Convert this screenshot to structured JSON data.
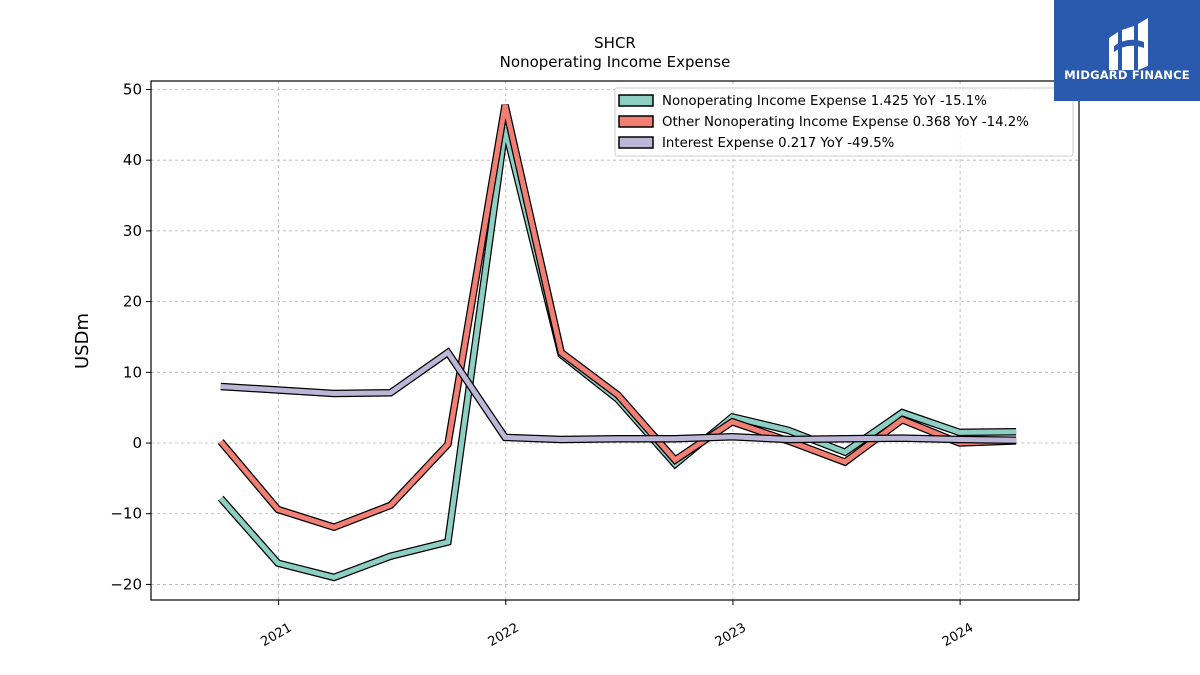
{
  "chart_data": {
    "type": "line",
    "title": "SHCR",
    "subtitle": "Nonoperating Income Expense",
    "ylabel": "USDm",
    "xlabel": "",
    "ylim": [
      -22.2,
      51.2
    ],
    "xlim": [
      "2020-06-10",
      "2024-07-10"
    ],
    "yticks": [
      -20,
      -10,
      0,
      10,
      20,
      30,
      40,
      50
    ],
    "xticks": [
      {
        "date": "2021-01-01",
        "label": "2021"
      },
      {
        "date": "2022-01-01",
        "label": "2022"
      },
      {
        "date": "2023-01-01",
        "label": "2023"
      },
      {
        "date": "2024-01-01",
        "label": "2024"
      }
    ],
    "grid": true,
    "legend_position": "top-right",
    "x": [
      "2020-09-30",
      "2020-12-31",
      "2021-03-31",
      "2021-06-30",
      "2021-09-30",
      "2021-12-31",
      "2022-03-31",
      "2022-06-30",
      "2022-09-30",
      "2022-12-31",
      "2023-03-31",
      "2023-06-30",
      "2023-09-30",
      "2023-12-31",
      "2024-03-31"
    ],
    "series": [
      {
        "name": "Nonoperating Income Expense",
        "legend": "Nonoperating Income Expense  1.425 YoY -15.1%",
        "color": "#8ecfc3",
        "values": [
          -7.8,
          -17.0,
          -19.0,
          -16.0,
          -14.0,
          44.5,
          12.5,
          6.2,
          -3.0,
          3.7,
          1.8,
          -1.3,
          4.3,
          1.5,
          1.6
        ]
      },
      {
        "name": "Other Nonoperating Income Expense",
        "legend": "Other Nonoperating Income Expense  0.368 YoY -14.2%",
        "color": "#f27f73",
        "values": [
          0.2,
          -9.4,
          -11.9,
          -8.8,
          -0.2,
          47.8,
          12.8,
          6.8,
          -2.4,
          3.0,
          0.3,
          -2.7,
          3.3,
          0.0,
          0.3
        ]
      },
      {
        "name": "Interest Expense",
        "legend": "Interest Expense  0.217 YoY -49.5%",
        "color": "#bcb6d7",
        "values": [
          8.0,
          7.5,
          7.0,
          7.1,
          12.8,
          0.8,
          0.5,
          0.6,
          0.6,
          0.9,
          0.5,
          0.6,
          0.7,
          0.5,
          0.4
        ]
      }
    ]
  },
  "logo": {
    "text": "MIDGARD FINANCE"
  }
}
